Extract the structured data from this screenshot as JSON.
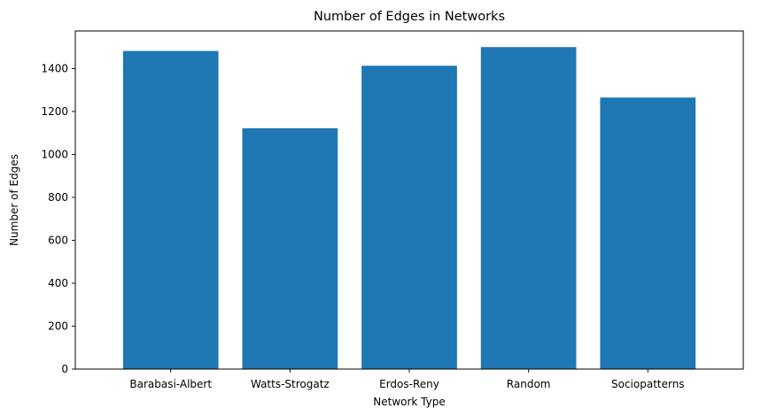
{
  "chart_data": {
    "type": "bar",
    "title": "Number of Edges in Networks",
    "xlabel": "Network Type",
    "ylabel": "Number of Edges",
    "categories": [
      "Barabasi-Albert",
      "Watts-Strogatz",
      "Erdos-Reny",
      "Random",
      "Sociopatterns"
    ],
    "values": [
      1482,
      1122,
      1413,
      1500,
      1265
    ],
    "ylim": [
      0,
      1575
    ],
    "yticks": [
      0,
      200,
      400,
      600,
      800,
      1000,
      1200,
      1400
    ],
    "grid": false,
    "legend": "none",
    "bar_color": "#1f77b4"
  }
}
